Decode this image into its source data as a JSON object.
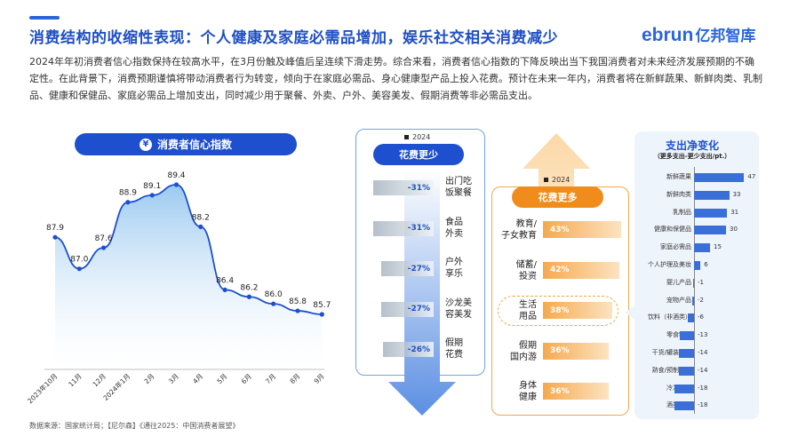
{
  "header": {
    "title": "消费结构的收缩性表现：个人健康及家庭必需品增加，娱乐社交相关消费减少",
    "logo_latin": "ebrun",
    "logo_cn": "亿邦智库"
  },
  "intro_text": "2024年年初消费者信心指数保持在较高水平，在3月份触及峰值后呈连续下滑走势。综合来看，消费者信心指数的下降反映出当下我国消费者对未来经济发展预期的不确定性。在此背景下，消费预期谨慎将带动消费者行为转变，倾向于在家庭必需品、身心健康型产品上投入花费。预计在未来一年内，消费者将在新鲜蔬果、新鲜肉类、乳制品、健康和保健品、家庭必需品上增加支出，同时减少用于聚餐、外卖、户外、美容美发、假期消费等非必需品支出。",
  "confidence": {
    "pill_label": "消费者信心指数",
    "icon": "money-hand-icon"
  },
  "chart_data": [
    {
      "type": "area",
      "title": "消费者信心指数",
      "categories": [
        "2023年10月",
        "11月",
        "12月",
        "2024年1月",
        "2月",
        "3月",
        "4月",
        "5月",
        "6月",
        "7月",
        "8月",
        "9月"
      ],
      "values": [
        87.9,
        87.0,
        87.6,
        88.9,
        89.1,
        89.4,
        88.2,
        86.4,
        86.2,
        86.0,
        85.8,
        85.7
      ],
      "value_labels": [
        "87.9",
        "87.0",
        "87.6",
        "88.9",
        "89.1",
        "89.4",
        "88.2",
        "86.4",
        "86.2",
        "86.0",
        "85.8",
        "85.7"
      ],
      "colors": {
        "line": "#1d4fcf",
        "fill": "#8fc3ef"
      }
    },
    {
      "type": "bar",
      "title": "花费更少",
      "legend": "2024",
      "categories": [
        "出门吃饭聚餐",
        "食品外卖",
        "户外享乐",
        "沙龙美容美发",
        "假期花费"
      ],
      "values": [
        -31,
        -31,
        -27,
        -27,
        -26
      ],
      "value_labels": [
        "-31%",
        "-31%",
        "-27%",
        "-27%",
        "-26%"
      ]
    },
    {
      "type": "bar",
      "title": "花费更多",
      "legend": "2024",
      "categories": [
        "教育/子女教育",
        "储蓄/投资",
        "生活用品",
        "假期国内游",
        "身体健康"
      ],
      "values": [
        43,
        42,
        38,
        36,
        36
      ],
      "value_labels": [
        "43%",
        "42%",
        "38%",
        "36%",
        "36%"
      ]
    },
    {
      "type": "bar",
      "title": "支出净变化",
      "subtitle": "（更多支出-更少支出/pt.）",
      "categories": [
        "新鲜蔬果",
        "新鲜肉类",
        "乳制品",
        "健康和保健品",
        "家庭必需品",
        "个人护理及美妆",
        "婴儿产品",
        "宠物产品",
        "饮料（非酒类）",
        "零食糖果",
        "干货/罐装食品",
        "熟食/预制食品",
        "冷冻食品",
        "酒类饮料"
      ],
      "values": [
        47,
        33,
        31,
        30,
        15,
        6,
        -1,
        -2,
        -6,
        -13,
        -14,
        -14,
        -18,
        -18
      ],
      "value_labels": [
        "47",
        "33",
        "31",
        "30",
        "15",
        "6",
        "-1",
        "-2",
        "-6",
        "-13",
        "-14",
        "-14",
        "-18",
        "-18"
      ]
    }
  ],
  "less": {
    "pill": "花费更少",
    "legend": "2024",
    "items": [
      {
        "value": "-31%",
        "label_1": "出门吃",
        "label_2": "饭聚餐"
      },
      {
        "value": "-31%",
        "label_1": "食品",
        "label_2": "外卖"
      },
      {
        "value": "-27%",
        "label_1": "户外",
        "label_2": "享乐"
      },
      {
        "value": "-27%",
        "label_1": "沙龙美",
        "label_2": "容美发"
      },
      {
        "value": "-26%",
        "label_1": "假期",
        "label_2": "花费"
      }
    ]
  },
  "more": {
    "pill": "花费更多",
    "legend": "2024",
    "items": [
      {
        "value": "43%",
        "label_1": "教育/",
        "label_2": "子女教育"
      },
      {
        "value": "42%",
        "label_1": "储蓄/",
        "label_2": "投资"
      },
      {
        "value": "38%",
        "label_1": "生活",
        "label_2": "用品"
      },
      {
        "value": "36%",
        "label_1": "假期",
        "label_2": "国内游"
      },
      {
        "value": "36%",
        "label_1": "身体",
        "label_2": "健康"
      }
    ]
  },
  "net": {
    "title": "支出净变化",
    "subtitle": "（更多支出-更少支出/pt.）"
  },
  "source": "数据来源：国家统计局；【尼尔森】《通往2025：中国消费者展望》"
}
